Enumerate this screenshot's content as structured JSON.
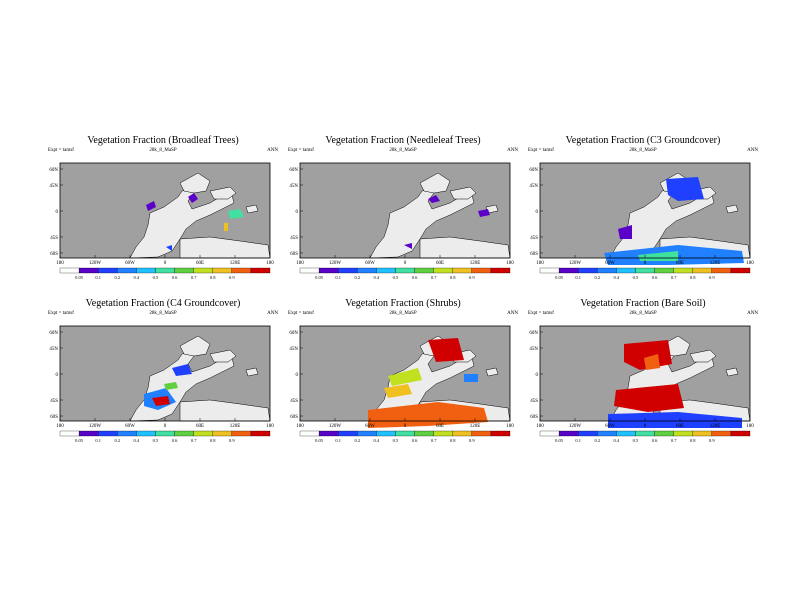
{
  "common": {
    "expt_label": "Expt = tamsf",
    "case_label": "28k_8_MaSP",
    "season": "ANN",
    "lat_ticks": [
      "60N",
      "45N",
      "0",
      "45S",
      "60S"
    ],
    "lon_ticks": [
      "180",
      "120W",
      "60W",
      "0",
      "60E",
      "120E",
      "180"
    ],
    "colorbar_labels": [
      "0.05",
      "0.1",
      "0.2",
      "0.4",
      "0.5",
      "0.6",
      "0.7",
      "0.8",
      "0.9"
    ],
    "colorbar_colors": [
      "#ffffff",
      "#5a00c8",
      "#2040ff",
      "#2080ff",
      "#20c0ff",
      "#40e0a0",
      "#60d040",
      "#c0e020",
      "#f0c020",
      "#f06010",
      "#d00000"
    ],
    "ocean_color": "#a0a0a0",
    "land_color": "#ececec"
  },
  "chart_data": [
    {
      "type": "heatmap",
      "title": "Vegetation Fraction (Broadleaf Trees)",
      "xlabel": "",
      "ylabel": "",
      "xlim": [
        -180,
        180
      ],
      "ylim": [
        -60,
        90
      ],
      "colorbar_labels": [
        "0.05",
        "0.1",
        "0.2",
        "0.4",
        "0.5",
        "0.6",
        "0.7",
        "0.8",
        "0.9"
      ]
    },
    {
      "type": "heatmap",
      "title": "Vegetation Fraction (Needleleaf Trees)",
      "xlabel": "",
      "ylabel": "",
      "xlim": [
        -180,
        180
      ],
      "ylim": [
        -60,
        90
      ],
      "colorbar_labels": [
        "0.05",
        "0.1",
        "0.2",
        "0.4",
        "0.5",
        "0.6",
        "0.7",
        "0.8",
        "0.9"
      ]
    },
    {
      "type": "heatmap",
      "title": "Vegetation Fraction (C3 Groundcover)",
      "xlabel": "",
      "ylabel": "",
      "xlim": [
        -180,
        180
      ],
      "ylim": [
        -60,
        90
      ],
      "colorbar_labels": [
        "0.05",
        "0.1",
        "0.2",
        "0.4",
        "0.5",
        "0.6",
        "0.7",
        "0.8",
        "0.9"
      ]
    },
    {
      "type": "heatmap",
      "title": "Vegetation Fraction (C4 Groundcover)",
      "xlabel": "",
      "ylabel": "",
      "xlim": [
        -180,
        180
      ],
      "ylim": [
        -60,
        90
      ],
      "colorbar_labels": [
        "0.05",
        "0.1",
        "0.2",
        "0.4",
        "0.5",
        "0.6",
        "0.7",
        "0.8",
        "0.9"
      ]
    },
    {
      "type": "heatmap",
      "title": "Vegetation Fraction (Shrubs)",
      "xlabel": "",
      "ylabel": "",
      "xlim": [
        -180,
        180
      ],
      "ylim": [
        -60,
        90
      ],
      "colorbar_labels": [
        "0.05",
        "0.1",
        "0.2",
        "0.4",
        "0.5",
        "0.6",
        "0.7",
        "0.8",
        "0.9"
      ]
    },
    {
      "type": "heatmap",
      "title": "Vegetation Fraction (Bare Soil)",
      "xlabel": "",
      "ylabel": "",
      "xlim": [
        -180,
        180
      ],
      "ylim": [
        -60,
        90
      ],
      "colorbar_labels": [
        "0.05",
        "0.1",
        "0.2",
        "0.4",
        "0.5",
        "0.6",
        "0.7",
        "0.8",
        "0.9"
      ]
    }
  ]
}
